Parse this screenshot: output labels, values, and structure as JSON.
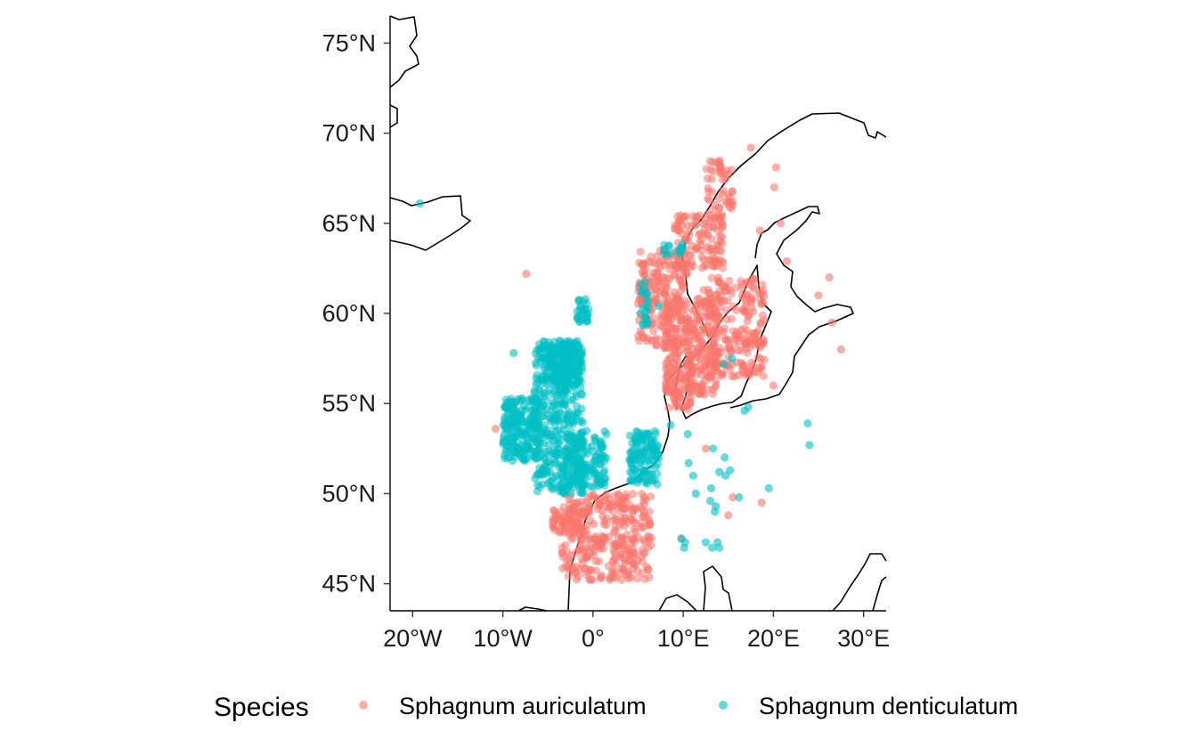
{
  "chart_data": {
    "type": "scatter",
    "map": true,
    "xlim": [
      -22.5,
      32.5
    ],
    "ylim": [
      43.5,
      76.5
    ],
    "x_ticks": [
      {
        "value": -20,
        "label": "20°W"
      },
      {
        "value": -10,
        "label": "10°W"
      },
      {
        "value": 0,
        "label": "0°"
      },
      {
        "value": 10,
        "label": "10°E"
      },
      {
        "value": 20,
        "label": "20°E"
      },
      {
        "value": 30,
        "label": "30°E"
      }
    ],
    "y_ticks": [
      {
        "value": 45,
        "label": "45°N"
      },
      {
        "value": 50,
        "label": "50°N"
      },
      {
        "value": 55,
        "label": "55°N"
      },
      {
        "value": 60,
        "label": "60°N"
      },
      {
        "value": 65,
        "label": "65°N"
      },
      {
        "value": 70,
        "label": "70°N"
      },
      {
        "value": 75,
        "label": "75°N"
      }
    ],
    "legend": {
      "title": "Species",
      "position": "bottom"
    },
    "series": [
      {
        "name": "Sphagnum auriculatum",
        "color": "#F8766D",
        "clusters": [
          {
            "lon": [
              -3.5,
              6.5
            ],
            "lat": [
              45.2,
              50.0
            ],
            "n": 320
          },
          {
            "lon": [
              -4.5,
              -1.0
            ],
            "lat": [
              47.8,
              49.2
            ],
            "n": 60
          },
          {
            "lon": [
              8.0,
              14.0
            ],
            "lat": [
              55.5,
              61.0
            ],
            "n": 260
          },
          {
            "lon": [
              12.0,
              19.0
            ],
            "lat": [
              56.5,
              62.0
            ],
            "n": 220
          },
          {
            "lon": [
              5.0,
              10.5
            ],
            "lat": [
              58.0,
              63.5
            ],
            "n": 200
          },
          {
            "lon": [
              9.0,
              14.5
            ],
            "lat": [
              62.5,
              65.5
            ],
            "n": 120
          },
          {
            "lon": [
              12.5,
              15.5
            ],
            "lat": [
              65.0,
              68.5
            ],
            "n": 50
          },
          {
            "lon": [
              8.0,
              11.0
            ],
            "lat": [
              54.5,
              57.5
            ],
            "n": 60
          }
        ],
        "points": [
          {
            "lon": -7.4,
            "lat": 62.2
          },
          {
            "lon": -10.8,
            "lat": 53.6
          },
          {
            "lon": 17.5,
            "lat": 69.2
          },
          {
            "lon": 20.3,
            "lat": 68.1
          },
          {
            "lon": 20.1,
            "lat": 67.0
          },
          {
            "lon": 20.8,
            "lat": 65.0
          },
          {
            "lon": 18.5,
            "lat": 64.6
          },
          {
            "lon": 21.5,
            "lat": 62.9
          },
          {
            "lon": 26.2,
            "lat": 62.0
          },
          {
            "lon": 25.0,
            "lat": 61.0
          },
          {
            "lon": 26.5,
            "lat": 59.5
          },
          {
            "lon": 27.5,
            "lat": 58.0
          },
          {
            "lon": 18.5,
            "lat": 57.0
          },
          {
            "lon": 15.5,
            "lat": 49.8
          },
          {
            "lon": 18.7,
            "lat": 49.5
          },
          {
            "lon": 15.0,
            "lat": 48.8
          },
          {
            "lon": 9.8,
            "lat": 47.5
          },
          {
            "lon": 0.5,
            "lat": 50.6
          },
          {
            "lon": 12.5,
            "lat": 52.5
          },
          {
            "lon": 20.0,
            "lat": 56.0
          }
        ]
      },
      {
        "name": "Sphagnum denticulatum",
        "color": "#00BFC4",
        "clusters": [
          {
            "lon": [
              -6.5,
              -1.0
            ],
            "lat": [
              50.0,
              58.5
            ],
            "n": 420
          },
          {
            "lon": [
              -10.0,
              -6.0
            ],
            "lat": [
              51.8,
              55.3
            ],
            "n": 200
          },
          {
            "lon": [
              -4.5,
              -1.5
            ],
            "lat": [
              56.0,
              58.5
            ],
            "n": 120
          },
          {
            "lon": [
              -1.8,
              -0.5
            ],
            "lat": [
              59.5,
              60.8
            ],
            "n": 30
          },
          {
            "lon": [
              -3.0,
              1.5
            ],
            "lat": [
              50.3,
              53.5
            ],
            "n": 120
          },
          {
            "lon": [
              4.0,
              7.3
            ],
            "lat": [
              50.5,
              53.5
            ],
            "n": 120
          },
          {
            "lon": [
              5.2,
              6.2
            ],
            "lat": [
              59.2,
              62.0
            ],
            "n": 20
          },
          {
            "lon": [
              7.8,
              10.0
            ],
            "lat": [
              63.3,
              63.9
            ],
            "n": 15
          }
        ],
        "points": [
          {
            "lon": -19.2,
            "lat": 66.1
          },
          {
            "lon": -8.8,
            "lat": 57.8
          },
          {
            "lon": 7.3,
            "lat": 60.4
          },
          {
            "lon": 5.8,
            "lat": 59.8
          },
          {
            "lon": 17.2,
            "lat": 54.8
          },
          {
            "lon": 16.8,
            "lat": 54.6
          },
          {
            "lon": 23.8,
            "lat": 53.9
          },
          {
            "lon": 24.0,
            "lat": 52.7
          },
          {
            "lon": 13.3,
            "lat": 52.5
          },
          {
            "lon": 14.6,
            "lat": 52.0
          },
          {
            "lon": 14.0,
            "lat": 51.2
          },
          {
            "lon": 14.7,
            "lat": 51.0
          },
          {
            "lon": 15.2,
            "lat": 51.3
          },
          {
            "lon": 10.6,
            "lat": 51.7
          },
          {
            "lon": 11.1,
            "lat": 51.0
          },
          {
            "lon": 13.1,
            "lat": 50.3
          },
          {
            "lon": 11.4,
            "lat": 50.0
          },
          {
            "lon": 13.0,
            "lat": 49.6
          },
          {
            "lon": 16.2,
            "lat": 49.8
          },
          {
            "lon": 19.5,
            "lat": 50.3
          },
          {
            "lon": 13.5,
            "lat": 49.0
          },
          {
            "lon": 13.6,
            "lat": 49.3
          },
          {
            "lon": 9.8,
            "lat": 47.5
          },
          {
            "lon": 10.2,
            "lat": 47.3
          },
          {
            "lon": 10.1,
            "lat": 47.0
          },
          {
            "lon": 12.5,
            "lat": 47.3
          },
          {
            "lon": 13.2,
            "lat": 47.0
          },
          {
            "lon": 13.8,
            "lat": 47.3
          },
          {
            "lon": 14.0,
            "lat": 47.0
          },
          {
            "lon": 10.5,
            "lat": 53.3
          },
          {
            "lon": 8.6,
            "lat": 53.8
          },
          {
            "lon": 14.5,
            "lat": 57.2
          },
          {
            "lon": 15.4,
            "lat": 57.5
          }
        ]
      }
    ]
  }
}
